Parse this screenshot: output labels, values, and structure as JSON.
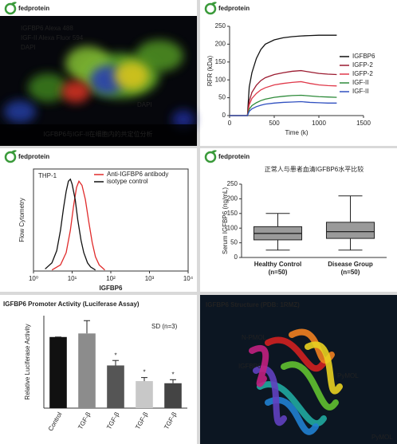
{
  "chart_data": [
    {
      "type": "image",
      "brand": "fedprotein",
      "labels": [
        "IGFBP6 Alexa 488",
        "IGF-II Alexa Fluor 594",
        "DAPI",
        "DAPI"
      ],
      "caption": "IGFBP6与IGF-II在细胞内的共定位分析"
    },
    {
      "type": "line",
      "brand": "fedprotein",
      "frame": false,
      "legend": "right",
      "xlabel": "Time (k)",
      "ylabel": "RFR (kDa)",
      "x": [
        0,
        200,
        220,
        250,
        300,
        350,
        400,
        500,
        600,
        700,
        800,
        900,
        1000,
        1100,
        1200
      ],
      "series": [
        {
          "name": "IGFBP6",
          "color": "#111111",
          "values": [
            0,
            0,
            80,
            120,
            160,
            185,
            200,
            212,
            218,
            221,
            223,
            224,
            225,
            225,
            225
          ]
        },
        {
          "name": "IGFP-2",
          "color": "#9b1b30",
          "values": [
            0,
            0,
            40,
            65,
            85,
            98,
            106,
            115,
            120,
            124,
            126,
            122,
            118,
            116,
            115
          ]
        },
        {
          "name": "IGFP-2",
          "color": "#e0394a",
          "values": [
            0,
            0,
            30,
            48,
            62,
            72,
            78,
            86,
            90,
            93,
            95,
            90,
            86,
            84,
            83
          ]
        },
        {
          "name": "IGF-II",
          "color": "#2e8b3a",
          "values": [
            0,
            0,
            18,
            28,
            36,
            42,
            46,
            51,
            54,
            56,
            57,
            55,
            53,
            52,
            51
          ]
        },
        {
          "name": "IGF-II",
          "color": "#3050c0",
          "values": [
            0,
            0,
            12,
            19,
            25,
            29,
            32,
            35,
            37,
            38,
            39,
            37,
            36,
            35,
            35
          ]
        }
      ],
      "xlim": [
        0,
        1500
      ],
      "xticks": [
        0,
        500,
        1000,
        1500
      ],
      "ylim": [
        0,
        250
      ],
      "yticks": [
        0,
        50,
        100,
        150,
        200,
        250
      ]
    },
    {
      "type": "line",
      "brand": "fedprotein",
      "frame": true,
      "legend": "upper right",
      "title": "THP-1",
      "xlabel": "IGFBP6",
      "ylabel": "Flow Cytometry",
      "xscale": "log",
      "series": [
        {
          "name": "Anti-IGFBP6 antibody",
          "color": "#e02a2a",
          "x": [
            3,
            5,
            7,
            9,
            11,
            13,
            15,
            18,
            22,
            27,
            33,
            40,
            50,
            70
          ],
          "values": [
            1,
            6,
            18,
            40,
            65,
            82,
            88,
            84,
            70,
            48,
            28,
            14,
            6,
            1
          ]
        },
        {
          "name": "isotype control",
          "color": "#111111",
          "x": [
            2,
            3,
            4,
            5,
            6,
            7,
            8,
            9,
            10,
            12,
            14,
            17,
            20,
            25,
            30,
            40
          ],
          "values": [
            2,
            8,
            20,
            40,
            62,
            78,
            88,
            90,
            85,
            70,
            50,
            30,
            18,
            8,
            4,
            1
          ]
        }
      ],
      "xlim": [
        1,
        10000
      ],
      "xticks": [
        {
          "value": 1,
          "label": "10⁰"
        },
        {
          "value": 10,
          "label": "10¹"
        },
        {
          "value": 100,
          "label": "10²"
        },
        {
          "value": 1000,
          "label": "10³"
        },
        {
          "value": 10000,
          "label": "10⁴"
        }
      ],
      "ylim": [
        0,
        100
      ]
    },
    {
      "type": "box",
      "brand": "fedprotein",
      "title": "正常人与患者血清IGFBP6水平比较",
      "ylabel": "Serum IGFBP6 (ng/mL)",
      "color": "#9a9a9a",
      "categories": [
        "Healthy Control",
        "Disease Group"
      ],
      "n_labels": [
        "(n=50)",
        "(n=50)"
      ],
      "boxes": [
        {
          "min": 25,
          "q1": 60,
          "median": 82,
          "q3": 105,
          "max": 150
        },
        {
          "min": 25,
          "q1": 65,
          "median": 88,
          "q3": 120,
          "max": 210
        }
      ],
      "ylim": [
        0,
        250
      ],
      "yticks": [
        0,
        50,
        100,
        150,
        200,
        250
      ]
    },
    {
      "type": "bar",
      "title": "IGFBP6 Promoter Activity (Luciferase Assay)",
      "note": "SD (n=3)",
      "ylabel": "Relative Luciferase Activity",
      "categories": [
        "Control",
        "TGF-β",
        "TGF-β",
        "TGF-β",
        "TGF-β"
      ],
      "values": [
        1.0,
        1.05,
        0.6,
        0.38,
        0.35
      ],
      "errors": [
        0,
        0.18,
        0.07,
        0.05,
        0.05
      ],
      "colors": [
        "#111111",
        "#8c8c8c",
        "#555555",
        "#c8c8c8",
        "#444444"
      ],
      "significance": [
        null,
        null,
        "*",
        "*",
        "*"
      ],
      "ylim": [
        0,
        1.3
      ]
    },
    {
      "type": "image",
      "title": "IGFBP6 Structure (PDB: 1RMZ)",
      "labels": [
        "N-PMOL",
        "IGFBP6",
        "PyMOL",
        "PyMOL"
      ]
    }
  ]
}
